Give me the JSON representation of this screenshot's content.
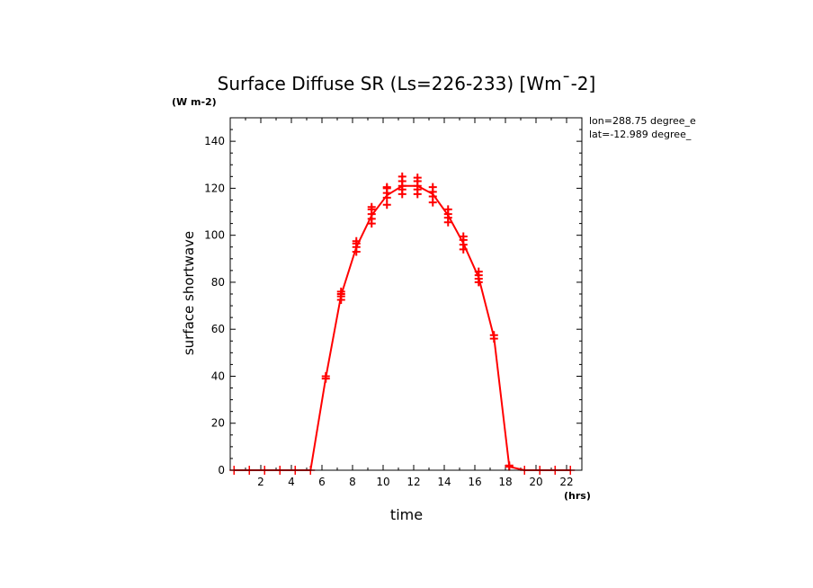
{
  "chart_data": {
    "type": "line",
    "title": "Surface Diffuse SR (Ls=226-233) [Wm¯-2]",
    "units_label": "(W m-2)",
    "xlabel": "time",
    "xunits": "(hrs)",
    "ylabel": "surface shortwave",
    "annotations": [
      "lon=288.75 degree_e",
      "lat=-12.989 degree_"
    ],
    "xlim": [
      0,
      23
    ],
    "ylim": [
      0,
      150
    ],
    "xticks": [
      2,
      4,
      6,
      8,
      10,
      12,
      14,
      16,
      18,
      20,
      22
    ],
    "yticks": [
      0,
      20,
      40,
      60,
      80,
      100,
      120,
      140
    ],
    "color": "#ff0000",
    "series": [
      {
        "x": [
          0.25,
          1.25,
          2.25,
          3.25,
          4.25,
          5.25,
          6.25,
          7.25,
          8.25,
          9.25,
          10.25,
          11.25,
          12.25,
          13.25,
          14.25,
          15.25,
          16.25,
          17.25,
          18.25,
          19.25,
          20.25,
          21.25,
          22.25
        ],
        "values": [
          0,
          0,
          0,
          0,
          0,
          0,
          39.5,
          74.5,
          95,
          108.5,
          117,
          121,
          121,
          117.5,
          108.5,
          96.5,
          82,
          56.5,
          1.5,
          0,
          0,
          0,
          0
        ]
      }
    ],
    "scatter": {
      "x": [
        6.25,
        6.25,
        7.25,
        7.25,
        7.25,
        7.25,
        8.25,
        8.25,
        8.25,
        8.25,
        9.25,
        9.25,
        9.25,
        9.25,
        9.25,
        10.25,
        10.25,
        10.25,
        10.25,
        10.25,
        11.25,
        11.25,
        11.25,
        11.25,
        11.25,
        12.25,
        12.25,
        12.25,
        12.25,
        12.25,
        13.25,
        13.25,
        13.25,
        13.25,
        14.25,
        14.25,
        14.25,
        14.25,
        15.25,
        15.25,
        15.25,
        15.25,
        16.25,
        16.25,
        16.25,
        16.25,
        17.25,
        17.25,
        18.25,
        18.25
      ],
      "y": [
        39,
        40,
        72.5,
        74,
        75,
        76,
        93,
        95,
        96.5,
        97.5,
        105,
        107,
        109,
        111,
        112,
        113,
        116,
        118,
        120,
        120.5,
        117.5,
        119.5,
        121,
        123,
        125,
        117.5,
        119.5,
        121,
        123,
        124.5,
        114,
        116.5,
        118.5,
        120.5,
        105.5,
        107.5,
        109,
        111,
        94,
        96,
        98,
        99.5,
        80,
        81.5,
        83,
        84.5,
        56,
        57.5,
        1.5,
        2
      ]
    }
  }
}
